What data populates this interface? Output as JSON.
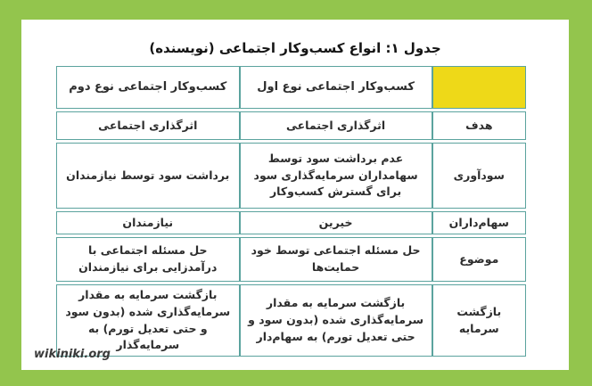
{
  "page": {
    "background_color": "#93c54d",
    "card_color": "#ffffff",
    "watermark": "wikiniki.org"
  },
  "title": "جدول ۱: انواع کسب‌وکار اجتماعی (نویسنده)",
  "table": {
    "border_color": "#5ba39e",
    "corner_fill_color": "#eed918",
    "text_color": "#2d2d2d",
    "columns": [
      {
        "key": "attribute",
        "label": ""
      },
      {
        "key": "type1",
        "label": "کسب‌وکار اجتماعی نوع اول"
      },
      {
        "key": "type2",
        "label": "کسب‌وکار اجتماعی نوع دوم"
      }
    ],
    "rows": [
      {
        "attribute": "هدف",
        "type1": "اثرگذاری اجتماعی",
        "type2": "اثرگذاری اجتماعی"
      },
      {
        "attribute": "سودآوری",
        "type1": "عدم برداشت سود توسط سهامداران سرمایه‌گذاری سود برای گسترش کسب‌وکار",
        "type2": "برداشت سود توسط نیازمندان"
      },
      {
        "attribute": "سهام‌داران",
        "type1": "خیرین",
        "type2": "نیازمندان"
      },
      {
        "attribute": "موضوع",
        "type1": "حل مسئله اجتماعی توسط خود حمایت‌ها",
        "type2": "حل مسئله اجتماعی با درآمدزایی برای نیازمندان"
      },
      {
        "attribute": "بازگشت سرمایه",
        "type1": "بازگشت سرمایه به مقدار سرمایه‌گذاری شده (بدون سود و حتی تعدیل تورم) به سهام‌دار",
        "type2": "بازگشت سرمایه به مقدار سرمایه‌گذاری شده (بدون سود و حتی تعدیل تورم) به سرمایه‌گذار"
      }
    ]
  }
}
